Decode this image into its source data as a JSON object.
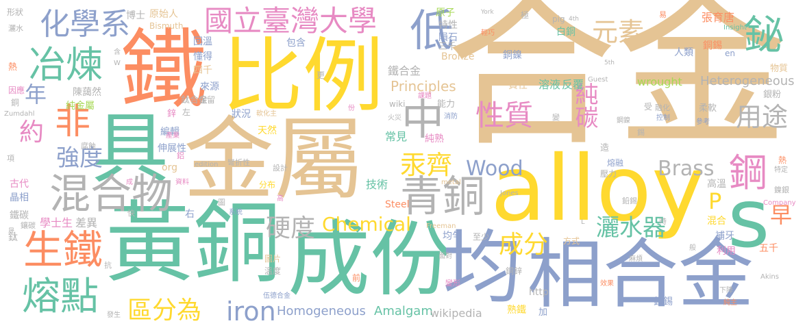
{
  "palette": {
    "tan": "#e5c494",
    "green": "#66c2a5",
    "blue": "#8da0cb",
    "orange": "#fc8d62",
    "yellow": "#ffd92f",
    "gray": "#b3b3b3",
    "pink": "#e78ac3",
    "lime": "#a6d854"
  },
  "words": {
    "hejin": "合金",
    "alloy": "alloy",
    "jinshu": "金屬",
    "huangtong": "黃銅",
    "chengfen1": "成份",
    "bili": "比例",
    "tie": "鐵",
    "ju": "具",
    "jun": "均",
    "xianghejin": "相合金",
    "s": "s",
    "hunhewu": "混合物",
    "qingtong": "青銅",
    "shengtie": "生鐵",
    "rongdian": "熔點",
    "yelian": "冶煉",
    "fei": "非",
    "huaxuexi": "化學系",
    "guoli": "國立臺灣大學",
    "di": "低",
    "bi": "鉍",
    "yuansu": "元素",
    "xingzhi": "性質",
    "zhong": "中",
    "gang": "鋼",
    "yongtu": "用途",
    "chun": "純",
    "tan": "碳",
    "wood": "Wood",
    "brass": "Brass",
    "gongqi": "汞齊",
    "chengfen2": "成分",
    "yingdu": "硬度",
    "chemical": "Chemical",
    "iron": "iron",
    "qufenwei": "區分為",
    "qiangdu": "強度",
    "yue": "約",
    "nian": "年",
    "zao": "早",
    "p": "P",
    "shashuiqi": "灑水器",
    "principles": "Principles",
    "homogeneous": "Homogeneous",
    "amalgam": "Amalgam",
    "wikipedia": "wikipedia",
    "heterogeneous": "Heterogeneous",
    "wrought": "wrought",
    "steel": "Steel",
    "bronze": "Bronze",
    "jishu": "技術",
    "changjian": "常見",
    "chunshu": "純熟",
    "tiehejin": "鐵合金",
    "tongnie": "銅鎳",
    "rongye": "溶液",
    "fanfu": "反覆",
    "zeren": "責任",
    "zhangyutang": "張育唐",
    "tongxi": "銅錫",
    "renlei": "人類",
    "baitong": "白銅",
    "wuqian": "五千",
    "yuanshiren": "原始人",
    "boshi": "博士",
    "chunjinshu": "純金屬",
    "chenaixin": "陳藹然",
    "bianji": "編輯",
    "yanzhanxing": "伸展性",
    "xueshisheng": "學士生",
    "chayi": "差異",
    "gudai": "古代",
    "jingxiang": "晶相",
    "tietan": "鐵碳",
    "xiangtong": "鑲碳",
    "tai": "鈦",
    "xingzhuang": "形狀",
    "shashui": "灑水",
    "re": "熱",
    "yinying": "因應",
    "tong": "銅",
    "zumdahl": "Zumdahl",
    "xiang": "項",
    "fushi": "腐蝕",
    "bismuth": "Bismuth",
    "huiwen": "回溫",
    "dongde": "懂得",
    "sqian": "四千",
    "laiyuan": "來源",
    "baocun": "保留",
    "zhuangkuang": "狀況",
    "tianran": "天然",
    "ruanhuazhu": "軟化主",
    "xin": "鋅",
    "taihejin": "鈦合金",
    "chanye": "產業",
    "lv": "鋁",
    "org": "org",
    "edition": "edition",
    "wanzhexing": "彎折性",
    "ziliao": "資料",
    "fenbu": "分布",
    "sheji": "設計",
    "gao": "高",
    "xitong": "系統",
    "tu": "圖",
    "you": "右",
    "zuo": "左",
    "tupian": "圖片",
    "wendu": "溫度",
    "qian": "前",
    "wudejin": "伍德合金",
    "fasheng": "發生",
    "kang": "抗",
    "yunyun": "均勻",
    "zhishao": "至少",
    "fangshi": "方式",
    "mianduo": "面對",
    "mafan": "麻煩",
    "bianxing": "變形",
    "xiaoguo": "效果",
    "tongxin": "銅鋅",
    "http": "http",
    "shutie": "熟鐵",
    "jia": "加",
    "yinxi": "銀錫",
    "xiajiang": "下降",
    "chunzhu": "純主",
    "akins": "Akins",
    "liyong": "利用",
    "buya": "補牙",
    "hunhe": "混合",
    "company": "Company",
    "nieyin": "鎳銀",
    "gaowen": "高溫",
    "yaoli": "壓力",
    "rongrong": "熔融",
    "zao2": "造",
    "teding": "特定",
    "qianxi": "鉛錫",
    "jones": "Jones",
    "freeman": "Freeman",
    "metal": "metal",
    "yinfen": "銀粉",
    "wuzhi": "物質",
    "yi": "易",
    "insight": "Insight",
    "en": "en",
    "guest": "Guest",
    "xyork": "York",
    "fourth": "4th",
    "fifth": "5th",
    "pig": "pig",
    "ji": "極",
    "qingqiao": "輕巧",
    "yuanzi": "原子",
    "texing": "特性",
    "yunshi": "隕石",
    "sanqian": "三千",
    "baohan": "包含",
    "geng": "更",
    "keti": "課題",
    "xiaofang": "消防",
    "huozai": "火災",
    "nengli": "能力",
    "wiki": "wiki",
    "fen": "份",
    "rouruan": "柔軟",
    "ronghua": "融化",
    "kongzhi": "控制",
    "shou": "受",
    "cankao": "參考",
    "tongnie2": "鋼鎳",
    "xi": "錫",
    "bian": "變",
    "w": "W",
    "han": "含",
    "sheng": "晟",
    "kuai": "快",
    "cheng": "成",
    "l": "L",
    "shi": "時",
    "ban": "般",
    "shui": "熱"
  }
}
